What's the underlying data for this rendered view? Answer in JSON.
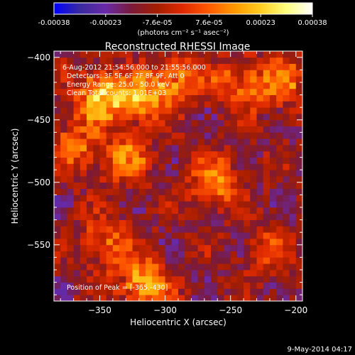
{
  "chart_data": {
    "type": "heatmap",
    "title": "Reconstructed RHESSI Image",
    "xlabel": "Heliocentric X (arcsec)",
    "ylabel": "Heliocentric Y (arcsec)",
    "xlim": [
      -385,
      -195
    ],
    "ylim": [
      -595,
      -395
    ],
    "x_ticks": [
      -350,
      -300,
      -250,
      -200
    ],
    "y_ticks": [
      -400,
      -450,
      -500,
      -550
    ],
    "colorbar": {
      "range": [
        -0.00038,
        0.00038
      ],
      "ticks": [
        "-0.00038",
        "-0.00023",
        "-7.6e-05",
        "7.6e-05",
        "0.00023",
        "0.00038"
      ],
      "label": "(photons cm⁻² s⁻¹ asec⁻²)",
      "colormap": [
        "#0000ff",
        "#3a2aa0",
        "#6a2aa8",
        "#7a1a3a",
        "#a51e00",
        "#e02a00",
        "#ff5a00",
        "#ff9900",
        "#ffcc20",
        "#ffff80",
        "#ffffff"
      ]
    },
    "info_lines": [
      "6-Aug-2012 21:54:56.000 to 21:55:56.000",
      "Detectors: 3F 5F 6F 7F 8F 9F, Att 0",
      "Energy Range: 25.0 - 50.0 keV",
      "Clean    Total counts: 1.01E+03"
    ],
    "peak_label": "Position of Peak = [-365,-430]",
    "hot_regions": [
      {
        "x": -350,
        "y": -432,
        "intensity": 0.00036
      },
      {
        "x": -318,
        "y": -432,
        "intensity": 0.0003
      },
      {
        "x": -290,
        "y": -417,
        "intensity": 0.00025
      },
      {
        "x": -245,
        "y": -422,
        "intensity": 0.00022
      },
      {
        "x": -212,
        "y": -420,
        "intensity": 0.00024
      },
      {
        "x": -330,
        "y": -482,
        "intensity": 0.00022
      },
      {
        "x": -262,
        "y": -500,
        "intensity": 0.00025
      },
      {
        "x": -345,
        "y": -548,
        "intensity": 0.0002
      },
      {
        "x": -317,
        "y": -580,
        "intensity": 0.0003
      },
      {
        "x": -220,
        "y": -555,
        "intensity": 0.00015
      },
      {
        "x": -368,
        "y": -470,
        "intensity": 0.0002
      }
    ]
  },
  "footer": {
    "timestamp": "9-May-2014 04:17"
  }
}
